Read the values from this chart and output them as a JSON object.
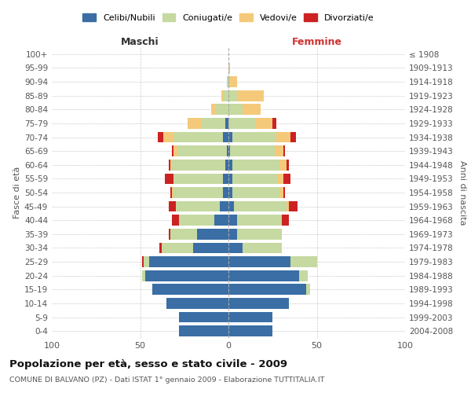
{
  "age_groups": [
    "0-4",
    "5-9",
    "10-14",
    "15-19",
    "20-24",
    "25-29",
    "30-34",
    "35-39",
    "40-44",
    "45-49",
    "50-54",
    "55-59",
    "60-64",
    "65-69",
    "70-74",
    "75-79",
    "80-84",
    "85-89",
    "90-94",
    "95-99",
    "100+"
  ],
  "birth_years": [
    "2004-2008",
    "1999-2003",
    "1994-1998",
    "1989-1993",
    "1984-1988",
    "1979-1983",
    "1974-1978",
    "1969-1973",
    "1964-1968",
    "1959-1963",
    "1954-1958",
    "1949-1953",
    "1944-1948",
    "1939-1943",
    "1934-1938",
    "1929-1933",
    "1924-1928",
    "1919-1923",
    "1914-1918",
    "1909-1913",
    "≤ 1908"
  ],
  "male": {
    "celibi": [
      28,
      28,
      35,
      43,
      47,
      45,
      20,
      18,
      8,
      5,
      3,
      3,
      2,
      1,
      3,
      2,
      0,
      0,
      0,
      0,
      0
    ],
    "coniugati": [
      0,
      0,
      0,
      0,
      2,
      3,
      18,
      15,
      20,
      25,
      28,
      28,
      30,
      28,
      28,
      13,
      7,
      3,
      1,
      0,
      0
    ],
    "vedovi": [
      0,
      0,
      0,
      0,
      0,
      0,
      0,
      0,
      0,
      0,
      1,
      0,
      1,
      2,
      6,
      8,
      3,
      1,
      0,
      0,
      0
    ],
    "divorziati": [
      0,
      0,
      0,
      0,
      0,
      1,
      1,
      1,
      4,
      4,
      1,
      5,
      1,
      1,
      3,
      0,
      0,
      0,
      0,
      0,
      0
    ]
  },
  "female": {
    "nubili": [
      25,
      25,
      34,
      44,
      40,
      35,
      8,
      5,
      5,
      3,
      2,
      2,
      2,
      1,
      2,
      0,
      0,
      0,
      0,
      0,
      0
    ],
    "coniugate": [
      0,
      0,
      0,
      2,
      5,
      15,
      22,
      25,
      25,
      30,
      27,
      26,
      27,
      25,
      25,
      15,
      8,
      5,
      1,
      0,
      0
    ],
    "vedove": [
      0,
      0,
      0,
      0,
      0,
      0,
      0,
      0,
      0,
      1,
      2,
      3,
      4,
      5,
      8,
      10,
      10,
      15,
      4,
      1,
      0
    ],
    "divorziate": [
      0,
      0,
      0,
      0,
      0,
      0,
      0,
      0,
      4,
      5,
      1,
      4,
      1,
      1,
      3,
      2,
      0,
      0,
      0,
      0,
      0
    ]
  },
  "colors": {
    "celibi": "#3a6ea5",
    "coniugati": "#c5d9a0",
    "vedovi": "#f5c97a",
    "divorziati": "#cc2222"
  },
  "xlim": 100,
  "title": "Popolazione per età, sesso e stato civile - 2009",
  "subtitle": "COMUNE DI BALVANO (PZ) - Dati ISTAT 1° gennaio 2009 - Elaborazione TUTTITALIA.IT",
  "xlabel_left": "Maschi",
  "xlabel_right": "Femmine",
  "ylabel_left": "Fasce di età",
  "ylabel_right": "Anni di nascita",
  "background_color": "#ffffff",
  "grid_color": "#cccccc"
}
